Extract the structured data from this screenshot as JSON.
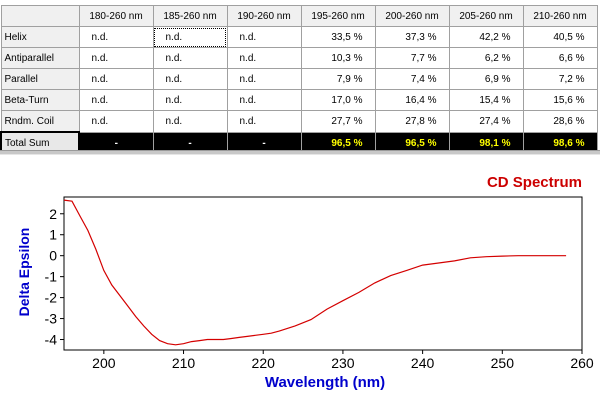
{
  "table": {
    "corner": "",
    "columns": [
      "180-260 nm",
      "185-260 nm",
      "190-260 nm",
      "195-260 nm",
      "200-260 nm",
      "205-260 nm",
      "210-260 nm"
    ],
    "rows": [
      {
        "label": "Helix",
        "cells": [
          "n.d.",
          "n.d.",
          "n.d.",
          "33,5 %",
          "37,3 %",
          "42,2 %",
          "40,5 %"
        ]
      },
      {
        "label": "Antiparallel",
        "cells": [
          "n.d.",
          "n.d.",
          "n.d.",
          "10,3 %",
          "7,7 %",
          "6,2 %",
          "6,6 %"
        ]
      },
      {
        "label": "Parallel",
        "cells": [
          "n.d.",
          "n.d.",
          "n.d.",
          "7,9 %",
          "7,4 %",
          "6,9 %",
          "7,2 %"
        ]
      },
      {
        "label": "Beta-Turn",
        "cells": [
          "n.d.",
          "n.d.",
          "n.d.",
          "17,0 %",
          "16,4 %",
          "15,4 %",
          "15,6 %"
        ]
      },
      {
        "label": "Rndm. Coil",
        "cells": [
          "n.d.",
          "n.d.",
          "n.d.",
          "27,7 %",
          "27,8 %",
          "27,4 %",
          "28,6 %"
        ]
      }
    ],
    "total": {
      "label": "Total Sum",
      "cells": [
        "-",
        "-",
        "-",
        "96,5 %",
        "96,5 %",
        "98,1 %",
        "98,6 %"
      ]
    }
  },
  "chart_data": {
    "type": "line",
    "title": "CD Spectrum",
    "xlabel": "Wavelength (nm)",
    "ylabel": "Delta Epsilon",
    "xlim": [
      195,
      260
    ],
    "ylim": [
      -4.5,
      2.8
    ],
    "xticks": [
      200,
      210,
      220,
      230,
      240,
      250,
      260
    ],
    "yticks": [
      2,
      1,
      0,
      -1,
      -2,
      -3,
      -4
    ],
    "grid": true,
    "series": [
      {
        "color": "#d40000",
        "x": [
          195,
          196,
          197,
          198,
          199,
          200,
          201,
          202,
          203,
          204,
          205,
          206,
          207,
          208,
          209,
          210,
          211,
          212,
          213,
          214,
          215,
          216,
          217,
          218,
          219,
          220,
          221,
          222,
          224,
          226,
          228,
          230,
          232,
          234,
          236,
          238,
          240,
          242,
          244,
          246,
          248,
          250,
          252,
          254,
          256,
          258
        ],
        "y": [
          2.65,
          2.6,
          1.9,
          1.2,
          0.3,
          -0.7,
          -1.4,
          -1.9,
          -2.4,
          -2.9,
          -3.35,
          -3.75,
          -4.05,
          -4.2,
          -4.25,
          -4.2,
          -4.1,
          -4.05,
          -4.0,
          -4.0,
          -4.0,
          -3.95,
          -3.9,
          -3.85,
          -3.8,
          -3.75,
          -3.7,
          -3.6,
          -3.35,
          -3.05,
          -2.55,
          -2.15,
          -1.75,
          -1.3,
          -0.95,
          -0.7,
          -0.45,
          -0.35,
          -0.25,
          -0.1,
          -0.05,
          -0.02,
          0,
          0,
          0,
          0
        ]
      }
    ],
    "zero_line_color": "#8b1a4a"
  },
  "colors": {
    "title": "#cc0000",
    "axis_labels": "#0000cc",
    "curve": "#d40000"
  }
}
